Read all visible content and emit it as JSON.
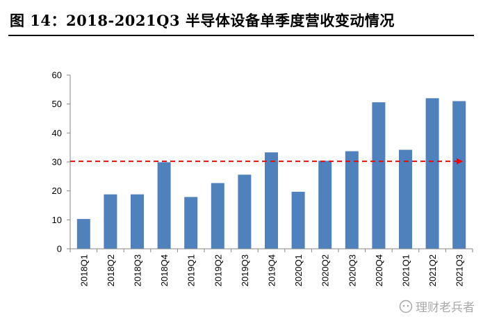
{
  "figure_title": "图 14：2018-2021Q3 半导体设备单季度营收变动情况",
  "watermark_text": "理财老兵者",
  "chart_data": {
    "type": "bar",
    "categories": [
      "2018Q1",
      "2018Q2",
      "2018Q3",
      "2018Q4",
      "2019Q1",
      "2019Q2",
      "2019Q3",
      "2019Q4",
      "2020Q1",
      "2020Q2",
      "2020Q3",
      "2020Q4",
      "2021Q1",
      "2021Q2",
      "2021Q3"
    ],
    "values": [
      10.3,
      18.8,
      18.8,
      29.9,
      17.9,
      22.7,
      25.6,
      33.3,
      19.7,
      30.4,
      33.7,
      50.6,
      34.2,
      52.0,
      51.0
    ],
    "yticks": [
      0,
      10,
      20,
      30,
      40,
      50,
      60
    ],
    "ylim": [
      0,
      60
    ],
    "xlabel": "",
    "ylabel": "",
    "grid": false,
    "reference_line": {
      "value": 30.2,
      "style": "dashed",
      "arrow": true
    },
    "colors": {
      "bar": "#4f81bd",
      "reference_line": "#ff0000",
      "axis": "#868686"
    }
  }
}
